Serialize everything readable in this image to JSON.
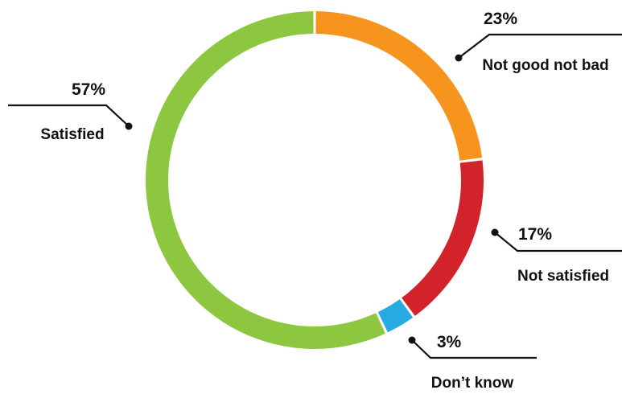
{
  "chart_data": {
    "type": "pie",
    "style": "donut",
    "slices": [
      {
        "label": "Not good not bad",
        "value": 23,
        "value_label": "23%",
        "color": "#f7941d"
      },
      {
        "label": "Not satisfied",
        "value": 17,
        "value_label": "17%",
        "color": "#d2232a"
      },
      {
        "label": "Don’t know",
        "value": 3,
        "value_label": "3%",
        "color": "#27aae1"
      },
      {
        "label": "Satisfied",
        "value": 57,
        "value_label": "57%",
        "color": "#8dc63f"
      }
    ]
  }
}
